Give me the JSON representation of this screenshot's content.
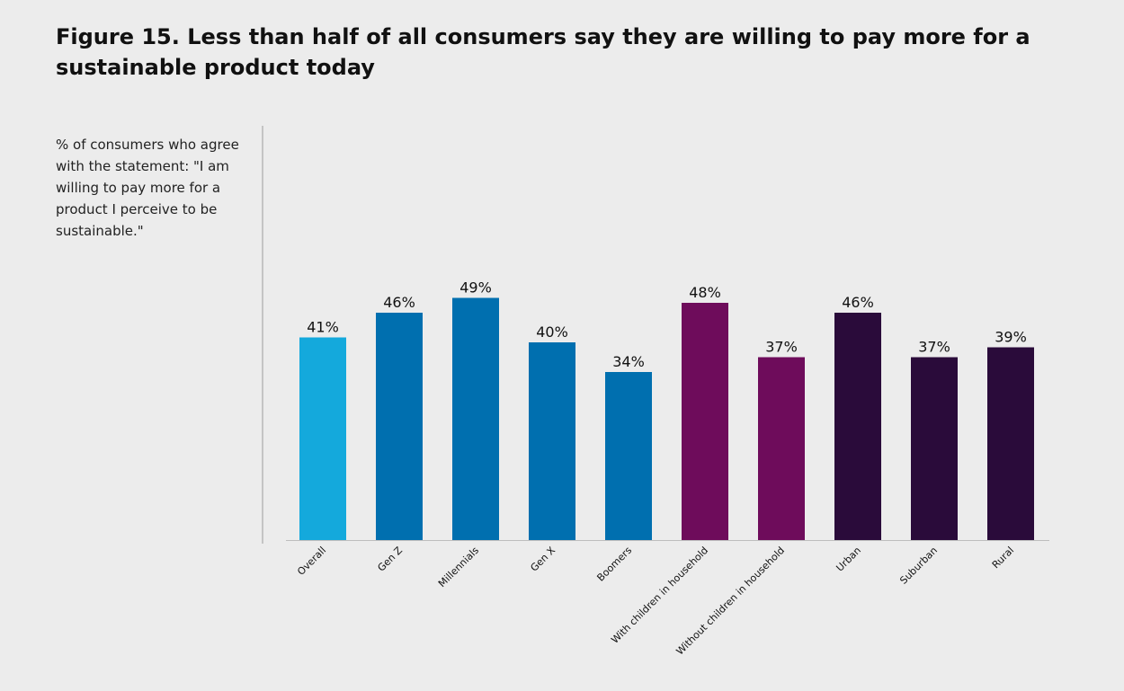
{
  "title": "Figure 15. Less than half of all consumers say they are willing to pay more for a sustainable product today",
  "note": "% of consumers who agree with the statement: \"I am willing to pay more for a product I perceive to be sustainable.\"",
  "chart_data": {
    "type": "bar",
    "categories": [
      "Overall",
      "Gen Z",
      "Millennials",
      "Gen X",
      "Boomers",
      "With children in household",
      "Without children in household",
      "Urban",
      "Suburban",
      "Rural"
    ],
    "values": [
      41,
      46,
      49,
      40,
      34,
      48,
      37,
      46,
      37,
      39
    ],
    "value_labels": [
      "41%",
      "46%",
      "49%",
      "40%",
      "34%",
      "48%",
      "37%",
      "46%",
      "37%",
      "39%"
    ],
    "colors": [
      "#14a9dc",
      "#006faf",
      "#006faf",
      "#006faf",
      "#006faf",
      "#6e0c5b",
      "#6e0c5b",
      "#2a0b3a",
      "#2a0b3a",
      "#2a0b3a"
    ],
    "unit": "%",
    "grid": false,
    "ylim": [
      0,
      100
    ]
  }
}
